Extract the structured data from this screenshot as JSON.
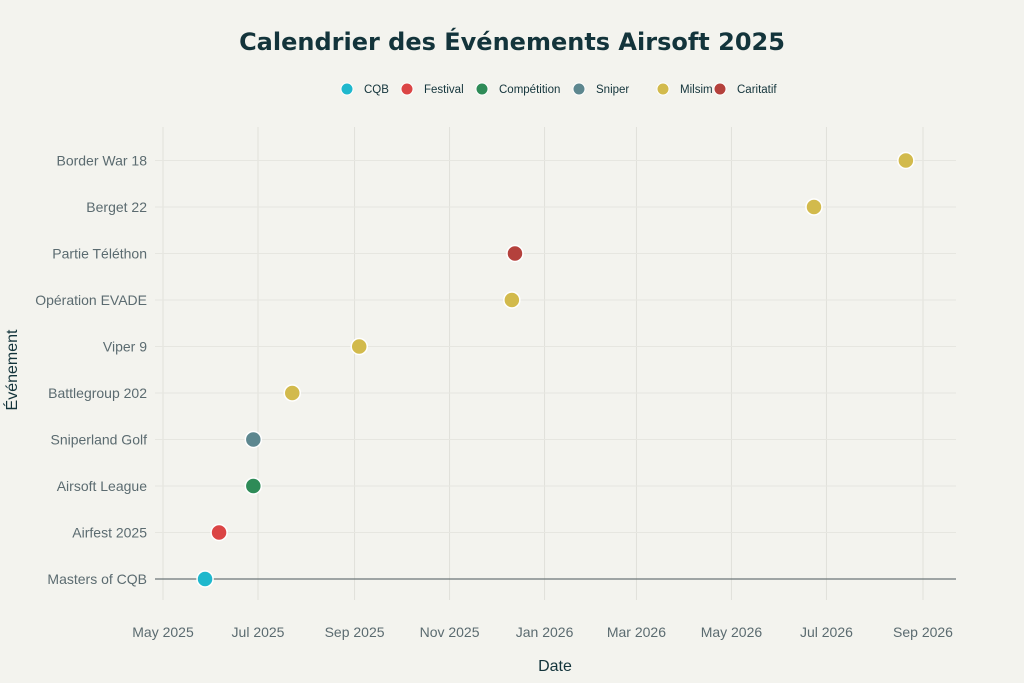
{
  "chart_data": {
    "type": "scatter",
    "title": "Calendrier des Événements Airsoft 2025",
    "xlabel": "Date",
    "ylabel": "Événement",
    "x_ticks": [
      "May 2025",
      "Jul 2025",
      "Sep 2025",
      "Nov 2025",
      "Jan 2026",
      "Mar 2026",
      "May 2026",
      "Jul 2026",
      "Sep 2026"
    ],
    "x_tick_dates": [
      "2025-05-01",
      "2025-07-01",
      "2025-09-01",
      "2025-11-01",
      "2026-01-01",
      "2026-03-01",
      "2026-05-01",
      "2026-07-01",
      "2026-09-01"
    ],
    "categories": [
      "Masters of CQB",
      "Airfest 2025",
      "Airsoft League",
      "Sniperland Golf",
      "Battlegroup 202",
      "Viper 9",
      "Opération EVADE",
      "Partie Téléthon",
      "Berget 22",
      "Border War 18"
    ],
    "legend": [
      {
        "name": "CQB",
        "color": "#1fb8cd"
      },
      {
        "name": "Festival",
        "color": "#db4545"
      },
      {
        "name": "Compétition",
        "color": "#2e8b57"
      },
      {
        "name": "Sniper",
        "color": "#5d878f"
      },
      {
        "name": "Milsim",
        "color": "#d2ba4c"
      },
      {
        "name": "Caritatif",
        "color": "#b4413c"
      }
    ],
    "legend_position": "top-center",
    "grid": true,
    "points": [
      {
        "event": "Masters of CQB",
        "date": "2025-05-28",
        "type": "CQB"
      },
      {
        "event": "Airfest 2025",
        "date": "2025-06-06",
        "type": "Festival"
      },
      {
        "event": "Airsoft League",
        "date": "2025-06-28",
        "type": "Compétition"
      },
      {
        "event": "Sniperland Golf",
        "date": "2025-06-28",
        "type": "Sniper"
      },
      {
        "event": "Battlegroup 202",
        "date": "2025-07-23",
        "type": "Milsim"
      },
      {
        "event": "Viper 9",
        "date": "2025-09-04",
        "type": "Milsim"
      },
      {
        "event": "Opération EVADE",
        "date": "2025-12-11",
        "type": "Milsim"
      },
      {
        "event": "Partie Téléthon",
        "date": "2025-12-13",
        "type": "Caritatif"
      },
      {
        "event": "Berget 22",
        "date": "2026-06-23",
        "type": "Milsim"
      },
      {
        "event": "Border War 18",
        "date": "2026-08-21",
        "type": "Milsim"
      }
    ]
  }
}
